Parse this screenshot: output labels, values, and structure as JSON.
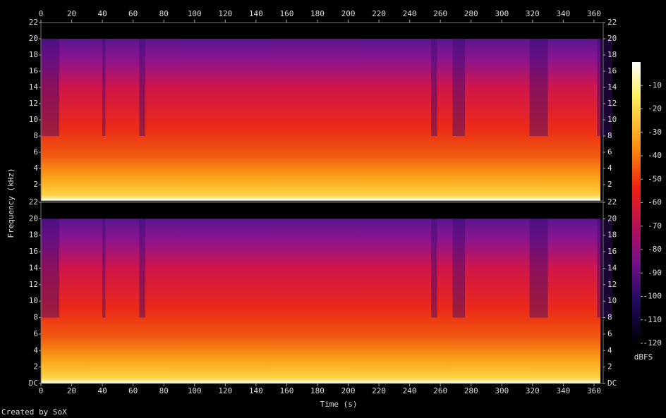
{
  "chart_data": {
    "type": "spectrogram",
    "xlabel": "Time (s)",
    "ylabel": "Frequency (kHz)",
    "footer": "Created by SoX",
    "xlim": [
      0,
      366
    ],
    "xticks": [
      0,
      20,
      40,
      60,
      80,
      100,
      120,
      140,
      160,
      180,
      200,
      220,
      240,
      260,
      280,
      300,
      320,
      340,
      360
    ],
    "panels": [
      {
        "ylim": [
          0,
          22
        ],
        "yticks": [
          2,
          4,
          6,
          8,
          10,
          12,
          14,
          16,
          18,
          20,
          22
        ]
      },
      {
        "ylim": [
          0,
          22
        ],
        "yticks": [
          {
            "value": 0,
            "label": "DC"
          },
          2,
          4,
          6,
          8,
          10,
          12,
          14,
          16,
          18,
          20,
          22
        ]
      }
    ],
    "colorbar": {
      "label": "dBFS",
      "lim": [
        -120,
        0
      ],
      "ticks": [
        -10,
        -20,
        -30,
        -40,
        -50,
        -60,
        -70,
        -80,
        -90,
        -100,
        -110,
        -120
      ]
    }
  }
}
